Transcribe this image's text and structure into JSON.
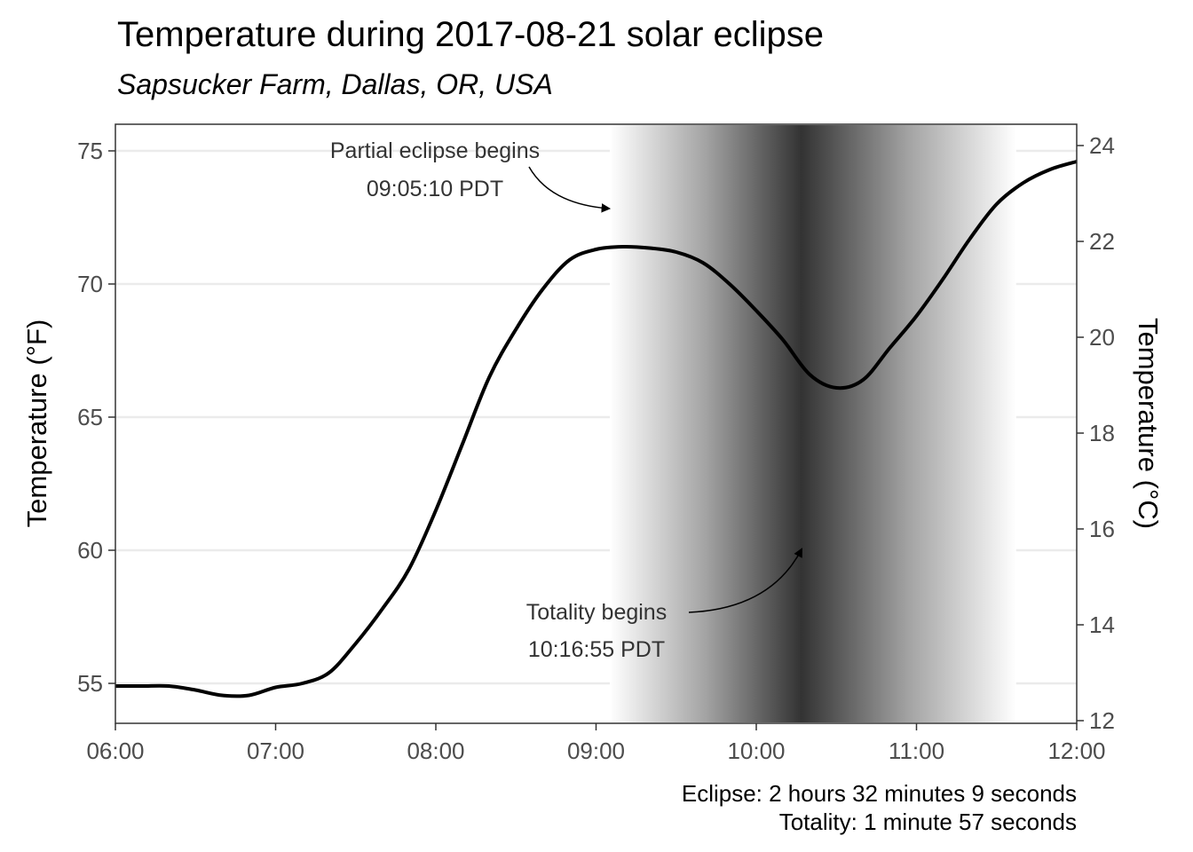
{
  "chart_data": {
    "type": "line",
    "title": "Temperature during 2017-08-21 solar eclipse",
    "subtitle": "Sapsucker Farm, Dallas, OR, USA",
    "ylabel_left": "Temperature (°F)",
    "ylabel_right": "Temperature (°C)",
    "xlim": [
      "06:00",
      "12:00"
    ],
    "ylim": [
      53.5,
      76.0
    ],
    "x_ticks": [
      "06:00",
      "07:00",
      "08:00",
      "09:00",
      "10:00",
      "11:00",
      "12:00"
    ],
    "y_ticks_left": [
      55,
      60,
      65,
      70,
      75
    ],
    "y_ticks_right": [
      12,
      14,
      16,
      18,
      20,
      22,
      24
    ],
    "grid": true,
    "shading": {
      "start": "09:05:10",
      "totality": "10:16:55",
      "end": "11:37:19",
      "color": "#333333"
    },
    "series": [
      {
        "color": "#000000",
        "x": [
          "06:00",
          "06:10",
          "06:20",
          "06:30",
          "06:40",
          "06:50",
          "07:00",
          "07:10",
          "07:20",
          "07:30",
          "07:40",
          "07:50",
          "08:00",
          "08:10",
          "08:20",
          "08:30",
          "08:40",
          "08:50",
          "09:00",
          "09:10",
          "09:20",
          "09:30",
          "09:40",
          "09:50",
          "10:00",
          "10:10",
          "10:20",
          "10:30",
          "10:40",
          "10:50",
          "11:00",
          "11:10",
          "11:20",
          "11:30",
          "11:40",
          "11:50",
          "12:00"
        ],
        "values": [
          54.9,
          54.9,
          54.9,
          54.75,
          54.55,
          54.55,
          54.85,
          55.0,
          55.4,
          56.5,
          57.8,
          59.3,
          61.5,
          64.0,
          66.5,
          68.3,
          69.8,
          70.9,
          71.3,
          71.4,
          71.35,
          71.2,
          70.8,
          70.0,
          69.0,
          67.9,
          66.6,
          66.1,
          66.4,
          67.6,
          68.8,
          70.2,
          71.7,
          73.0,
          73.8,
          74.3,
          74.6
        ]
      }
    ],
    "annotations": [
      {
        "line1": "Partial eclipse begins",
        "line2": "09:05:10 PDT"
      },
      {
        "line1": "Totality begins",
        "line2": "10:16:55 PDT"
      }
    ],
    "caption": [
      "Eclipse: 2 hours 32 minutes 9 seconds",
      "Totality: 1 minute 57 seconds"
    ]
  }
}
